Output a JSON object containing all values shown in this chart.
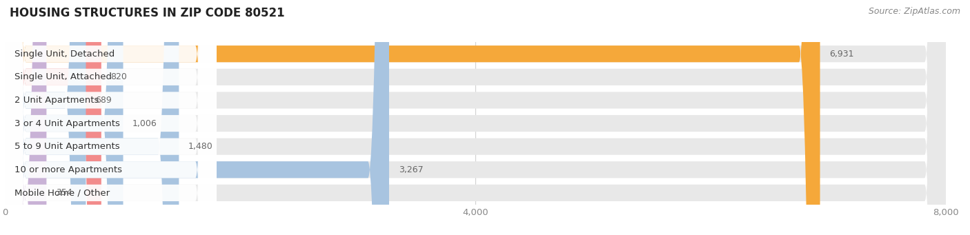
{
  "title": "HOUSING STRUCTURES IN ZIP CODE 80521",
  "source": "Source: ZipAtlas.com",
  "categories": [
    "Single Unit, Detached",
    "Single Unit, Attached",
    "2 Unit Apartments",
    "3 or 4 Unit Apartments",
    "5 to 9 Unit Apartments",
    "10 or more Apartments",
    "Mobile Home / Other"
  ],
  "values": [
    6931,
    820,
    689,
    1006,
    1480,
    3267,
    354
  ],
  "bar_colors": [
    "#f5a83a",
    "#f28b8b",
    "#a8c4e0",
    "#a8c4e0",
    "#a8c4e0",
    "#a8c4e0",
    "#c9b2d6"
  ],
  "bar_bg_color": "#e8e8e8",
  "row_bg_color": "#ffffff",
  "xlim": [
    0,
    8000
  ],
  "xticks": [
    0,
    4000,
    8000
  ],
  "title_fontsize": 12,
  "label_fontsize": 9.5,
  "value_fontsize": 9,
  "source_fontsize": 9,
  "bg_color": "#ffffff",
  "plot_bg_color": "#ffffff",
  "grid_color": "#d0d0d0",
  "tick_color": "#888888",
  "value_color": "#666666",
  "label_color": "#333333"
}
